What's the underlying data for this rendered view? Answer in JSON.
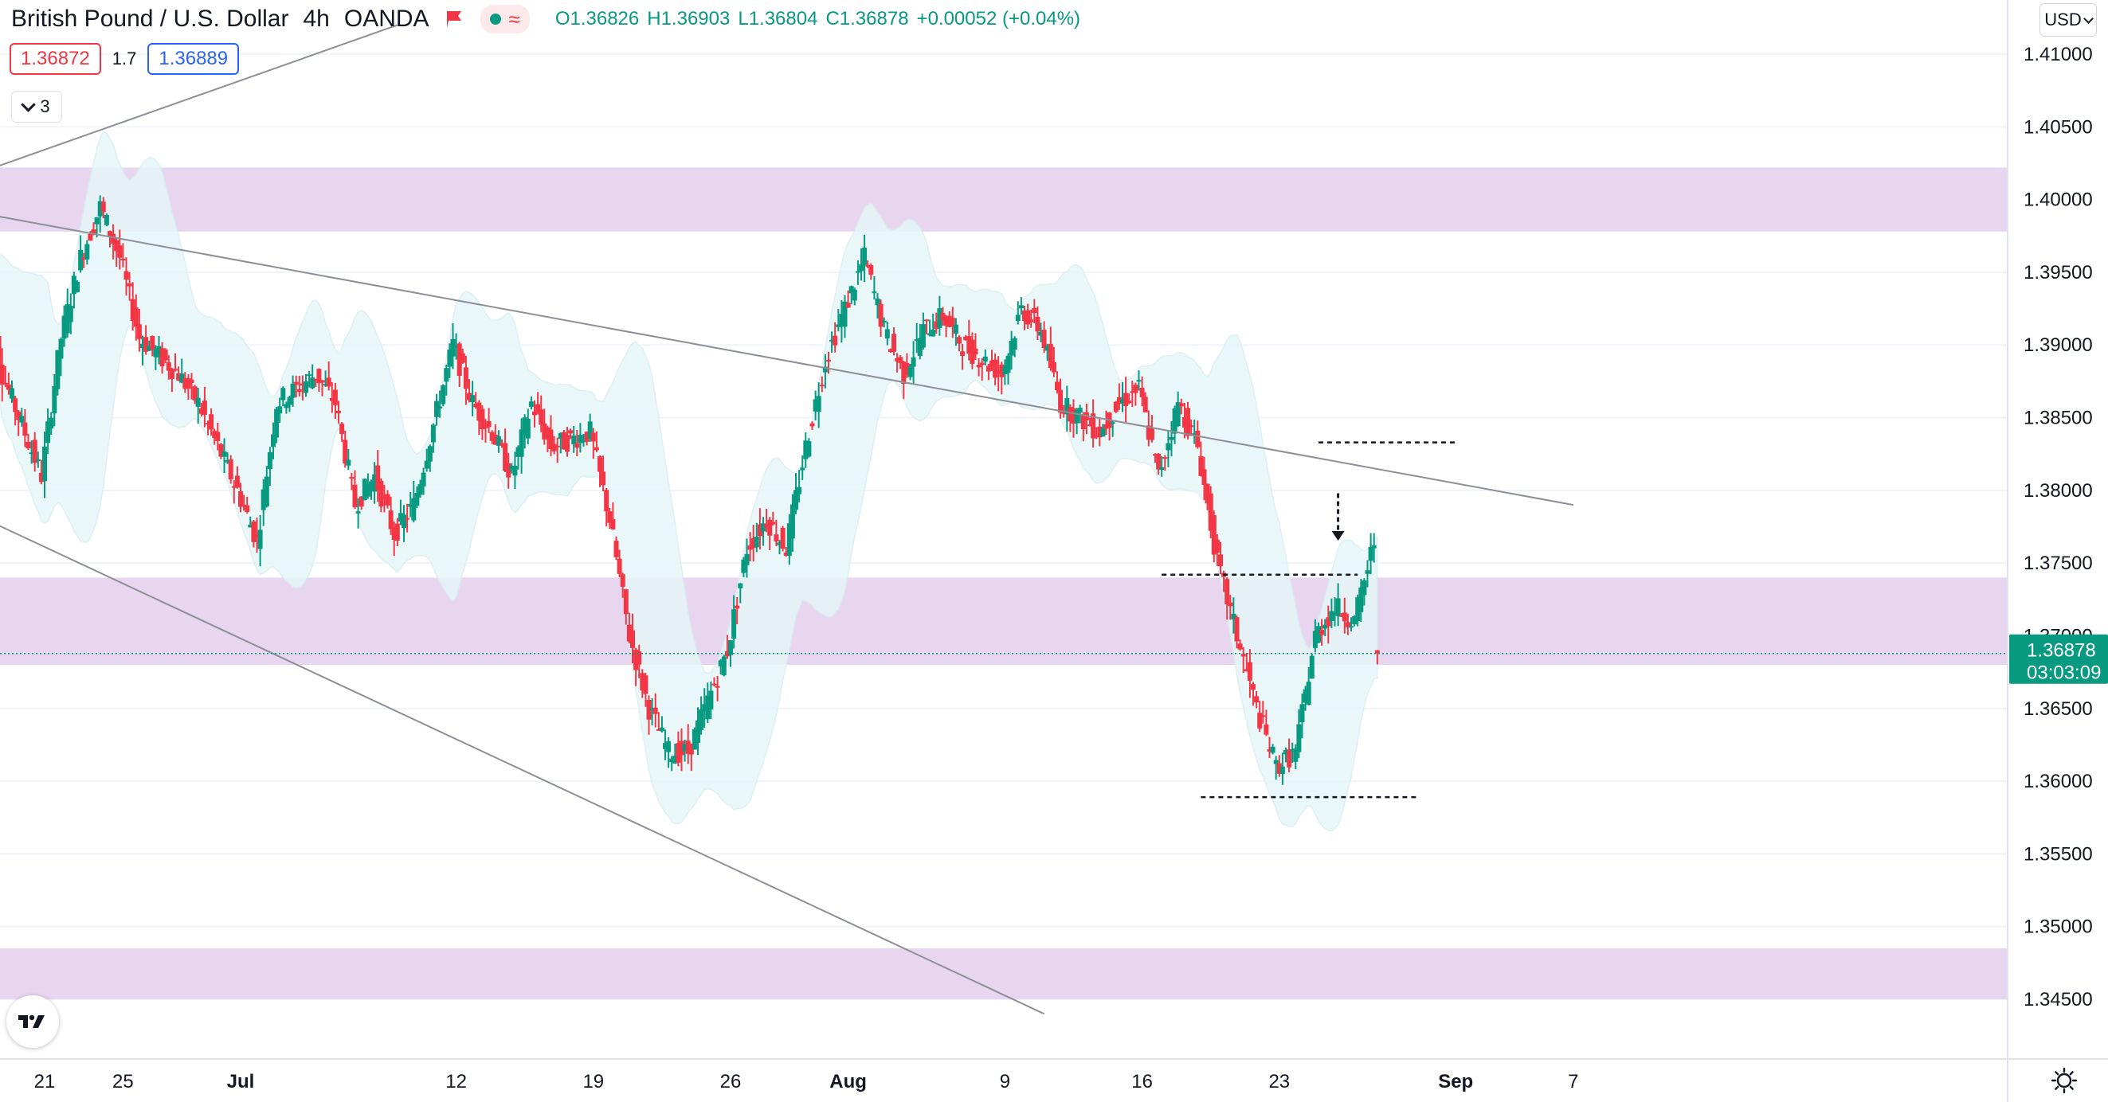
{
  "header": {
    "symbol": "British Pound / U.S. Dollar",
    "interval": "4h",
    "exchange": "OANDA",
    "ohlc": {
      "open": "O1.36826",
      "high": "H1.36903",
      "low": "L1.36804",
      "close": "C1.36878",
      "change": "+0.00052 (+0.04%)"
    }
  },
  "trade": {
    "sell_price": "1.36872",
    "spread": "1.7",
    "buy_price": "1.36889"
  },
  "indicators_toggle": {
    "count": "3"
  },
  "currency_menu": {
    "label": "USD"
  },
  "price_label": {
    "price": "1.36878",
    "countdown": "03:03:09"
  },
  "colors": {
    "up": "#089981",
    "down": "#f23645",
    "zone": "#e7d3ee",
    "band": "#e6f6f8",
    "price_tag": "#089981"
  },
  "chart_data": {
    "type": "candlestick",
    "ylim": [
      1.3435,
      1.4125
    ],
    "y_ticks": [
      "1.41000",
      "1.40500",
      "1.40000",
      "1.39500",
      "1.39000",
      "1.38500",
      "1.38000",
      "1.37500",
      "1.37000",
      "1.36500",
      "1.36000",
      "1.35500",
      "1.35000",
      "1.34500"
    ],
    "x_ticks": [
      "21",
      "25",
      "Jul",
      "12",
      "19",
      "26",
      "Aug",
      "9",
      "16",
      "23",
      "Sep",
      "7"
    ],
    "bold_x_ticks": [
      "Jul",
      "Aug",
      "Sep"
    ],
    "support_resistance_zones": [
      [
        1.3978,
        1.4022
      ],
      [
        1.368,
        1.374
      ],
      [
        1.345,
        1.3485
      ]
    ],
    "channel_lines": [
      {
        "from": {
          "date": "Jun 18",
          "price": 1.399
        },
        "to": {
          "date": "Sep 7",
          "price": 1.379
        }
      },
      {
        "from": {
          "date": "Jun 18",
          "price": 1.378
        },
        "to": {
          "date": "Aug 11",
          "price": 1.344
        }
      },
      {
        "from": {
          "date": "Jun 18",
          "price": 1.402
        },
        "to": {
          "date": "Jul 9",
          "price": 1.412
        }
      }
    ],
    "dashed_levels": [
      {
        "price": 1.3833,
        "from": "Aug 25",
        "to": "Sep 1"
      },
      {
        "price": 1.3742,
        "from": "Aug 17",
        "to": "Aug 27"
      },
      {
        "price": 1.3589,
        "from": "Aug 19",
        "to": "Aug 30"
      }
    ],
    "marker_arrow": {
      "date": "Aug 26",
      "from_price": 1.3798,
      "to_price": 1.3772
    },
    "last_price": 1.36878,
    "series": [
      {
        "name": "GBP/USD",
        "points": [
          [
            "Jun 18",
            1.395,
            1.388
          ],
          [
            "Jun 19",
            1.388,
            1.381
          ],
          [
            "Jun 21",
            1.381,
            1.3905
          ],
          [
            "Jun 22",
            1.3905,
            1.396
          ],
          [
            "Jun 23",
            1.396,
            1.3995
          ],
          [
            "Jun 24",
            1.3995,
            1.396
          ],
          [
            "Jun 25",
            1.396,
            1.3905
          ],
          [
            "Jun 26",
            1.3905,
            1.388
          ],
          [
            "Jun 28",
            1.388,
            1.386
          ],
          [
            "Jun 29",
            1.386,
            1.383
          ],
          [
            "Jun 30",
            1.383,
            1.38
          ],
          [
            "Jul 1",
            1.38,
            1.3765
          ],
          [
            "Jul 2",
            1.3765,
            1.386
          ],
          [
            "Jul 3",
            1.386,
            1.388
          ],
          [
            "Jul 5",
            1.388,
            1.386
          ],
          [
            "Jul 6",
            1.386,
            1.379
          ],
          [
            "Jul 7",
            1.379,
            1.381
          ],
          [
            "Jul 8",
            1.381,
            1.377
          ],
          [
            "Jul 9",
            1.377,
            1.379
          ],
          [
            "Jul 10",
            1.379,
            1.39
          ],
          [
            "Jul 12",
            1.39,
            1.386
          ],
          [
            "Jul 13",
            1.386,
            1.384
          ],
          [
            "Jul 14",
            1.384,
            1.381
          ],
          [
            "Jul 15",
            1.381,
            1.386
          ],
          [
            "Jul 16",
            1.386,
            1.383
          ],
          [
            "Jul 17",
            1.383,
            1.384
          ],
          [
            "Jul 19",
            1.384,
            1.378
          ],
          [
            "Jul 20",
            1.378,
            1.37
          ],
          [
            "Jul 21",
            1.37,
            1.365
          ],
          [
            "Jul 22",
            1.365,
            1.362
          ],
          [
            "Jul 23",
            1.362,
            1.362
          ],
          [
            "Jul 24",
            1.362,
            1.369
          ],
          [
            "Jul 26",
            1.369,
            1.376
          ],
          [
            "Jul 27",
            1.376,
            1.378
          ],
          [
            "Jul 28",
            1.378,
            1.376
          ],
          [
            "Jul 29",
            1.376,
            1.383
          ],
          [
            "Jul 30",
            1.383,
            1.389
          ],
          [
            "Jul 31",
            1.389,
            1.396
          ],
          [
            "Aug 2",
            1.396,
            1.391
          ],
          [
            "Aug 3",
            1.391,
            1.388
          ],
          [
            "Aug 4",
            1.388,
            1.391
          ],
          [
            "Aug 5",
            1.391,
            1.392
          ],
          [
            "Aug 6",
            1.392,
            1.39
          ],
          [
            "Aug 7",
            1.39,
            1.388
          ],
          [
            "Aug 9",
            1.388,
            1.3925
          ],
          [
            "Aug 10",
            1.3925,
            1.391
          ],
          [
            "Aug 11",
            1.391,
            1.386
          ],
          [
            "Aug 12",
            1.386,
            1.385
          ],
          [
            "Aug 13",
            1.385,
            1.384
          ],
          [
            "Aug 14",
            1.384,
            1.386
          ],
          [
            "Aug 15",
            1.386,
            1.387
          ],
          [
            "Aug 16",
            1.387,
            1.381
          ],
          [
            "Aug 17",
            1.381,
            1.386
          ],
          [
            "Aug 18",
            1.386,
            1.383
          ],
          [
            "Aug 19",
            1.383,
            1.375
          ],
          [
            "Aug 20",
            1.375,
            1.37
          ],
          [
            "Aug 21",
            1.37,
            1.365
          ],
          [
            "Aug 22",
            1.365,
            1.361
          ],
          [
            "Aug 23",
            1.361,
            1.362
          ],
          [
            "Aug 24",
            1.362,
            1.37
          ],
          [
            "Aug 25",
            1.37,
            1.372
          ],
          [
            "Aug 26",
            1.372,
            1.371
          ],
          [
            "Aug 27",
            1.371,
            1.3765
          ],
          [
            "Aug 28",
            1.3765,
            1.369
          ]
        ]
      }
    ]
  }
}
